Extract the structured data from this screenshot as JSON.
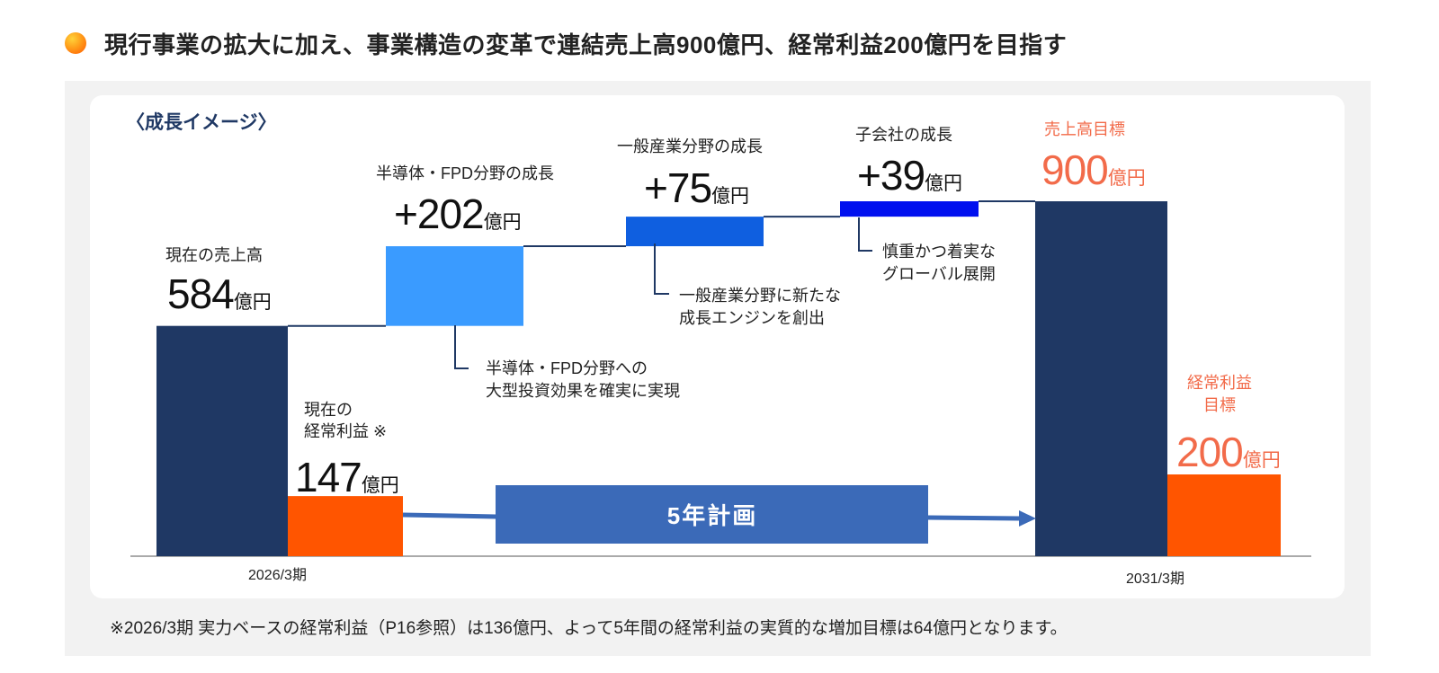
{
  "title": "現行事業の拡大に加え、事業構造の変革で連結売上高900億円、経常利益200億円を目指す",
  "growth_label": "〈成長イメージ〉",
  "unit": "億円",
  "plan_label": "5年計画",
  "notes": {
    "semi_line1": "半導体・FPD分野への",
    "semi_line2": "大型投資効果を確実に実現",
    "general_line1": "一般産業分野に新たな",
    "general_line2": "成長エンジンを創出",
    "sub_line1": "慎重かつ着実な",
    "sub_line2": "グローバル展開"
  },
  "footnote": "※2026/3期 実力ベースの経常利益（P16参照）は136億円、よって5年間の経常利益の実質的な増加目標は64億円となります。",
  "colors": {
    "navy": "#1f3864",
    "orange": "#ff5500",
    "light_blue": "#3a9bff",
    "mid_blue": "#0f5fe0",
    "deep_blue": "#0010ef",
    "plan_blue": "#3b6ab8",
    "target_text": "#f26b4a"
  },
  "chart_data": {
    "type": "bar",
    "subtype": "waterfall",
    "unit": "億円",
    "categories": [
      "2026/3期",
      "2031/3期"
    ],
    "bars": [
      {
        "label": "現在の売上高",
        "display": "584",
        "value": 584,
        "base": 0,
        "kind": "total",
        "color": "#1f3864"
      },
      {
        "label": "半導体・FPD分野の成長",
        "display": "+202",
        "value": 202,
        "base": 584,
        "kind": "increase",
        "color": "#3a9bff"
      },
      {
        "label": "一般産業分野の成長",
        "display": "+75",
        "value": 75,
        "base": 786,
        "kind": "increase",
        "color": "#0f5fe0"
      },
      {
        "label": "子会社の成長",
        "display": "+39",
        "value": 39,
        "base": 861,
        "kind": "increase",
        "color": "#0010ef"
      },
      {
        "label": "売上高目標",
        "display": "900",
        "value": 900,
        "base": 0,
        "kind": "target",
        "color": "#1f3864"
      }
    ],
    "profit": [
      {
        "label_line1": "現在の",
        "label_line2": "経常利益 ※",
        "display": "147",
        "value": 147,
        "color": "#ff5500"
      },
      {
        "label_line1": "経常利益",
        "label_line2": "目標",
        "display": "200",
        "value": 200,
        "color": "#ff5500"
      }
    ],
    "ylim": [
      0,
      900
    ],
    "grid": false,
    "legend": "none"
  }
}
